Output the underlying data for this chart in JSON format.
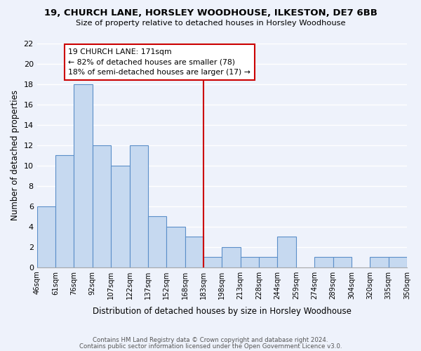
{
  "title1": "19, CHURCH LANE, HORSLEY WOODHOUSE, ILKESTON, DE7 6BB",
  "title2": "Size of property relative to detached houses in Horsley Woodhouse",
  "xlabel": "Distribution of detached houses by size in Horsley Woodhouse",
  "ylabel": "Number of detached properties",
  "bin_edges": [
    "46sqm",
    "61sqm",
    "76sqm",
    "92sqm",
    "107sqm",
    "122sqm",
    "137sqm",
    "152sqm",
    "168sqm",
    "183sqm",
    "198sqm",
    "213sqm",
    "228sqm",
    "244sqm",
    "259sqm",
    "274sqm",
    "289sqm",
    "304sqm",
    "320sqm",
    "335sqm",
    "350sqm"
  ],
  "bar_values": [
    6,
    11,
    18,
    12,
    10,
    12,
    5,
    4,
    3,
    1,
    2,
    1,
    1,
    3,
    0,
    1,
    1,
    0,
    1,
    1
  ],
  "bar_color": "#c6d9f0",
  "bar_edge_color": "#5b8fc9",
  "vline_x": 8.5,
  "vline_color": "#cc0000",
  "annotation_text": "19 CHURCH LANE: 171sqm\n← 82% of detached houses are smaller (78)\n18% of semi-detached houses are larger (17) →",
  "annotation_box_color": "#ffffff",
  "annotation_box_edge": "#cc0000",
  "ylim": [
    0,
    22
  ],
  "yticks": [
    0,
    2,
    4,
    6,
    8,
    10,
    12,
    14,
    16,
    18,
    20,
    22
  ],
  "footnote1": "Contains HM Land Registry data © Crown copyright and database right 2024.",
  "footnote2": "Contains public sector information licensed under the Open Government Licence v3.0.",
  "bg_color": "#eef2fb"
}
